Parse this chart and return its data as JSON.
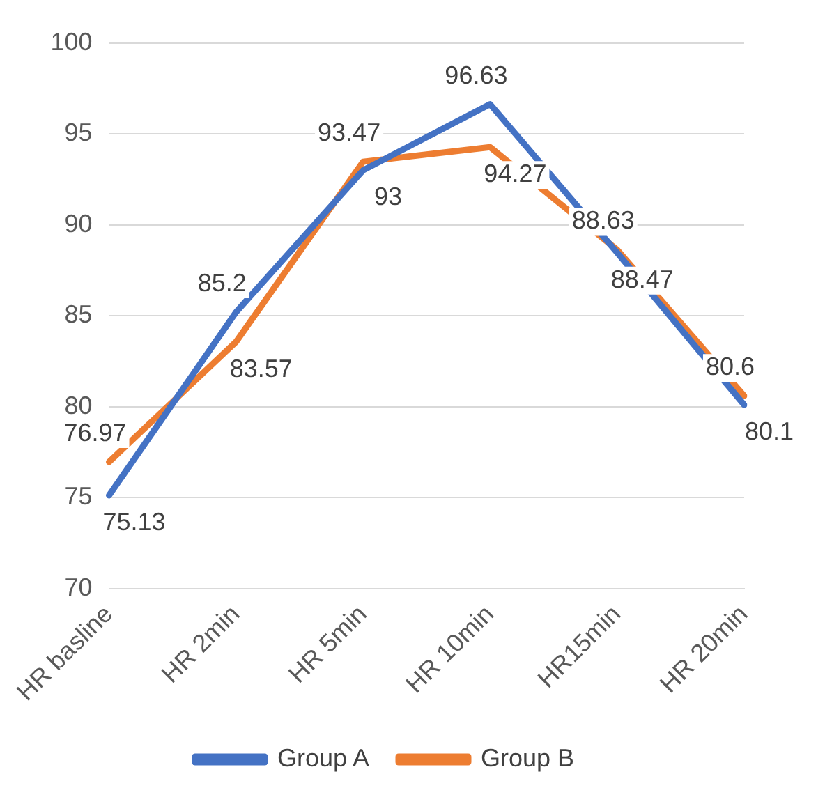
{
  "chart_data": {
    "type": "line",
    "categories": [
      "HR basline",
      "HR 2min",
      "HR 5min",
      "HR 10min",
      "HR15min",
      "HR 20min"
    ],
    "series": [
      {
        "name": "Group A",
        "color": "#4472c4",
        "values": [
          75.13,
          85.2,
          93,
          96.63,
          88.47,
          80.1
        ]
      },
      {
        "name": "Group B",
        "color": "#ed7d31",
        "values": [
          76.97,
          83.57,
          93.47,
          94.27,
          88.63,
          80.6
        ]
      }
    ],
    "ylim": [
      70,
      100
    ],
    "yticks": [
      70,
      75,
      80,
      85,
      90,
      95,
      100
    ],
    "grid": "y",
    "legend": "bottom",
    "data_labels": true,
    "marker": "none",
    "line_style": "solid"
  }
}
